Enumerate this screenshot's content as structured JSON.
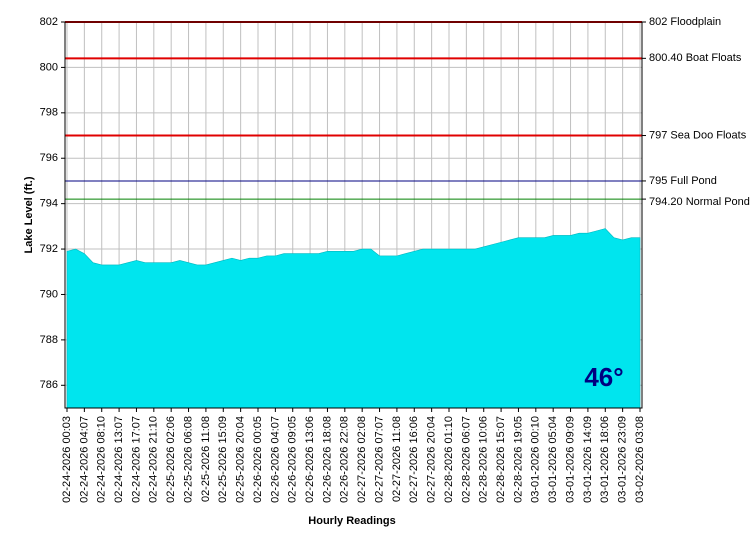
{
  "chart_data": {
    "type": "area",
    "xlabel": "Hourly Readings",
    "ylabel": "Lake Level (ft.)",
    "ylim": [
      785,
      802
    ],
    "yticks": [
      786,
      788,
      790,
      792,
      794,
      796,
      798,
      800,
      802
    ],
    "grid": true,
    "color": "#00e5ee",
    "categories": [
      "02-24-2026 00:03",
      null,
      "02-24-2026 04:07",
      null,
      "02-24-2026 08:10",
      null,
      "02-24-2026 13:07",
      null,
      "02-24-2026 17:07",
      null,
      "02-24-2026 21:10",
      null,
      "02-25-2026 02:06",
      null,
      "02-25-2026 06:08",
      null,
      "02-25-2026 11:08",
      null,
      "02-25-2026 15:09",
      null,
      "02-25-2026 20:04",
      null,
      "02-26-2026 00:05",
      null,
      "02-26-2026 04:07",
      null,
      "02-26-2026 09:05",
      null,
      "02-26-2026 13:06",
      null,
      "02-26-2026 18:08",
      null,
      "02-26-2026 22:08",
      null,
      "02-27-2026 02:08",
      null,
      "02-27-2026 07:07",
      null,
      "02-27-2026 11:08",
      null,
      "02-27-2026 16:06",
      null,
      "02-27-2026 20:04",
      null,
      "02-28-2026 01:10",
      null,
      "02-28-2026 06:07",
      null,
      "02-28-2026 10:06",
      null,
      "02-28-2026 15:07",
      null,
      "02-28-2026 19:05",
      null,
      "03-01-2026 00:10",
      null,
      "03-01-2026 05:04",
      null,
      "03-01-2026 09:09",
      null,
      "03-01-2026 14:09",
      null,
      "03-01-2026 18:06",
      null,
      "03-01-2026 23:09",
      null,
      "03-02-2026 03:08"
    ],
    "values": [
      791.9,
      792.0,
      791.8,
      791.4,
      791.3,
      791.3,
      791.3,
      791.4,
      791.5,
      791.4,
      791.4,
      791.4,
      791.4,
      791.5,
      791.4,
      791.3,
      791.3,
      791.4,
      791.5,
      791.6,
      791.5,
      791.6,
      791.6,
      791.7,
      791.7,
      791.8,
      791.8,
      791.8,
      791.8,
      791.8,
      791.9,
      791.9,
      791.9,
      791.9,
      792.0,
      792.0,
      791.7,
      791.7,
      791.7,
      791.8,
      791.9,
      792.0,
      792.0,
      792.0,
      792.0,
      792.0,
      792.0,
      792.0,
      792.1,
      792.2,
      792.3,
      792.4,
      792.5,
      792.5,
      792.5,
      792.5,
      792.6,
      792.6,
      792.6,
      792.7,
      792.7,
      792.8,
      792.9,
      792.5,
      792.4,
      792.5,
      792.5
    ],
    "reference_lines": [
      {
        "value": 802,
        "label": "802 Floodplain",
        "color": "#e00000"
      },
      {
        "value": 800.4,
        "label": "800.40 Boat Floats",
        "color": "#e00000"
      },
      {
        "value": 797,
        "label": "797 Sea Doo Floats",
        "color": "#e00000"
      },
      {
        "value": 795,
        "label": "795 Full Pond",
        "color": "#000080"
      },
      {
        "value": 794.2,
        "label": "794.20 Normal Pond",
        "color": "#008000"
      }
    ],
    "annotation": "46°"
  }
}
